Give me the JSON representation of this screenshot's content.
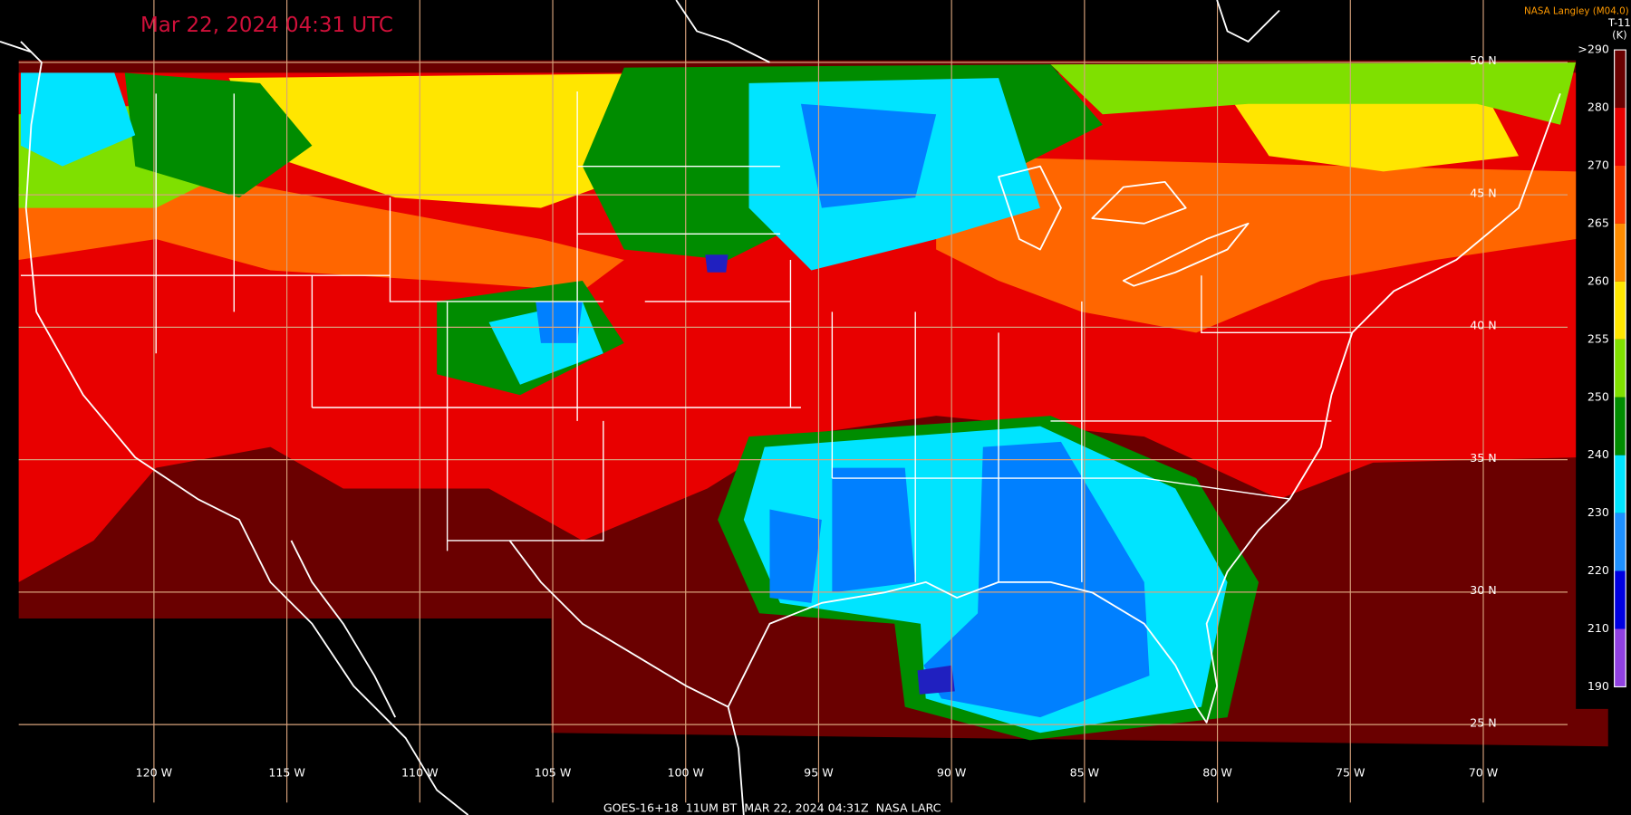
{
  "header": {
    "title": "Mar 22, 2024 04:31 UTC",
    "credit": "NASA Langley (M04.0)"
  },
  "colorbar": {
    "channel": "T-11",
    "unit": "(K)",
    "labels": [
      ">290",
      "280",
      "270",
      "265",
      "260",
      "255",
      "250",
      "240",
      "230",
      "220",
      "210",
      "190"
    ]
  },
  "latitude_labels": [
    "50 N",
    "45 N",
    "40 N",
    "35 N",
    "30 N",
    "25 N"
  ],
  "longitude_labels": [
    "120 W",
    "115 W",
    "110 W",
    "105 W",
    "100 W",
    "95 W",
    "90 W",
    "85 W",
    "80 W",
    "75 W",
    "70 W"
  ],
  "footer": "GOES-16+18  11UM BT  MAR 22, 2024 04:31Z  NASA LARC"
}
